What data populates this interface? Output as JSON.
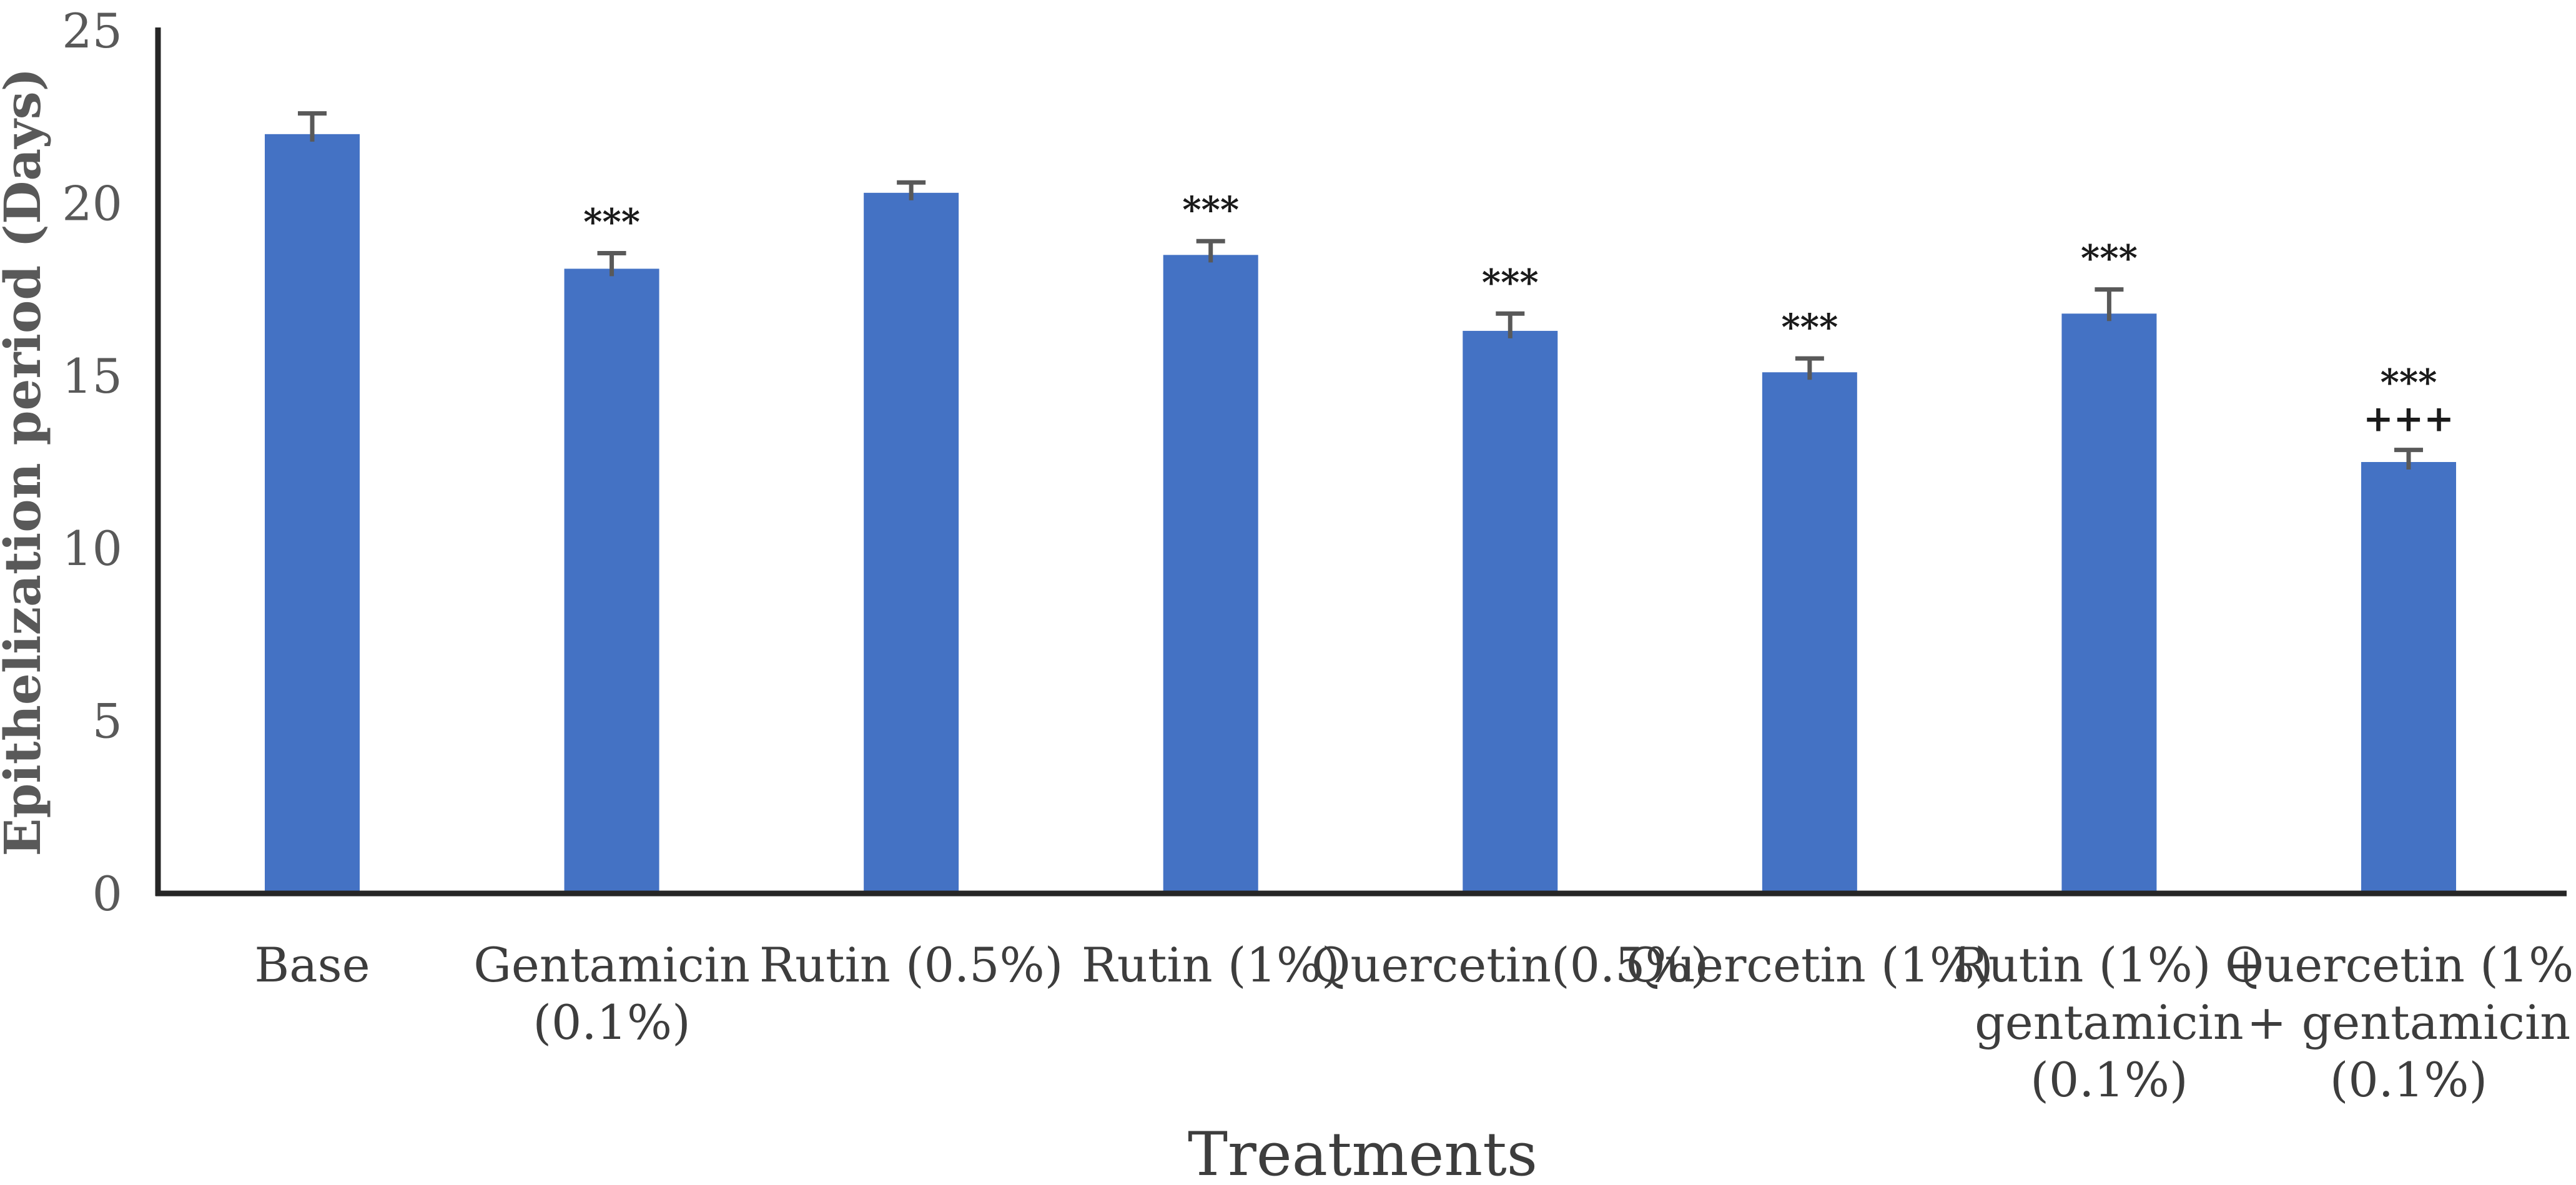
{
  "figure": {
    "background": "#ffffff",
    "bar_color": "#4472C4",
    "axis_color": "#262626",
    "error_bar_color": "#595959",
    "tick_label_color": "#595959",
    "category_label_color": "#3d3d3d",
    "y_title_color": "#595959",
    "x_title_color": "#3d3d3d",
    "annotation_color": "#1a1a1a"
  },
  "chart_data": {
    "type": "bar",
    "xlabel": "Treatments",
    "ylabel": "Epithelization period (Days)",
    "ylim": [
      0,
      25
    ],
    "yticks": [
      0,
      5,
      10,
      15,
      20,
      25
    ],
    "grid": false,
    "legend": "none",
    "categories": [
      "Base",
      "Gentamicin (0.1%)",
      "Rutin (0.5%)",
      "Rutin (1%)",
      "Quercetin(0.5%)",
      "Quercetin (1%)",
      "Rutin (1%) + gentamicin (0.1%)",
      "Quercetin (1%) + gentamicin (0.1%)"
    ],
    "category_label_lines": [
      [
        "Base"
      ],
      [
        "Gentamicin",
        "(0.1%)"
      ],
      [
        "Rutin (0.5%)"
      ],
      [
        "Rutin (1%)"
      ],
      [
        "Quercetin(0.5%)"
      ],
      [
        "Quercetin (1%)"
      ],
      [
        "Rutin (1%) +",
        "gentamicin",
        "(0.1%)"
      ],
      [
        "Quercetin (1%)",
        "+ gentamicin",
        "(0.1%)"
      ]
    ],
    "values": [
      22.0,
      18.1,
      20.3,
      18.5,
      16.3,
      15.1,
      16.8,
      12.5
    ],
    "errors": [
      0.6,
      0.45,
      0.3,
      0.4,
      0.5,
      0.4,
      0.7,
      0.35
    ],
    "significance": [
      [],
      [
        "***"
      ],
      [],
      [
        "***"
      ],
      [
        "***"
      ],
      [
        "***"
      ],
      [
        "***"
      ],
      [
        "***",
        "+++"
      ]
    ]
  }
}
